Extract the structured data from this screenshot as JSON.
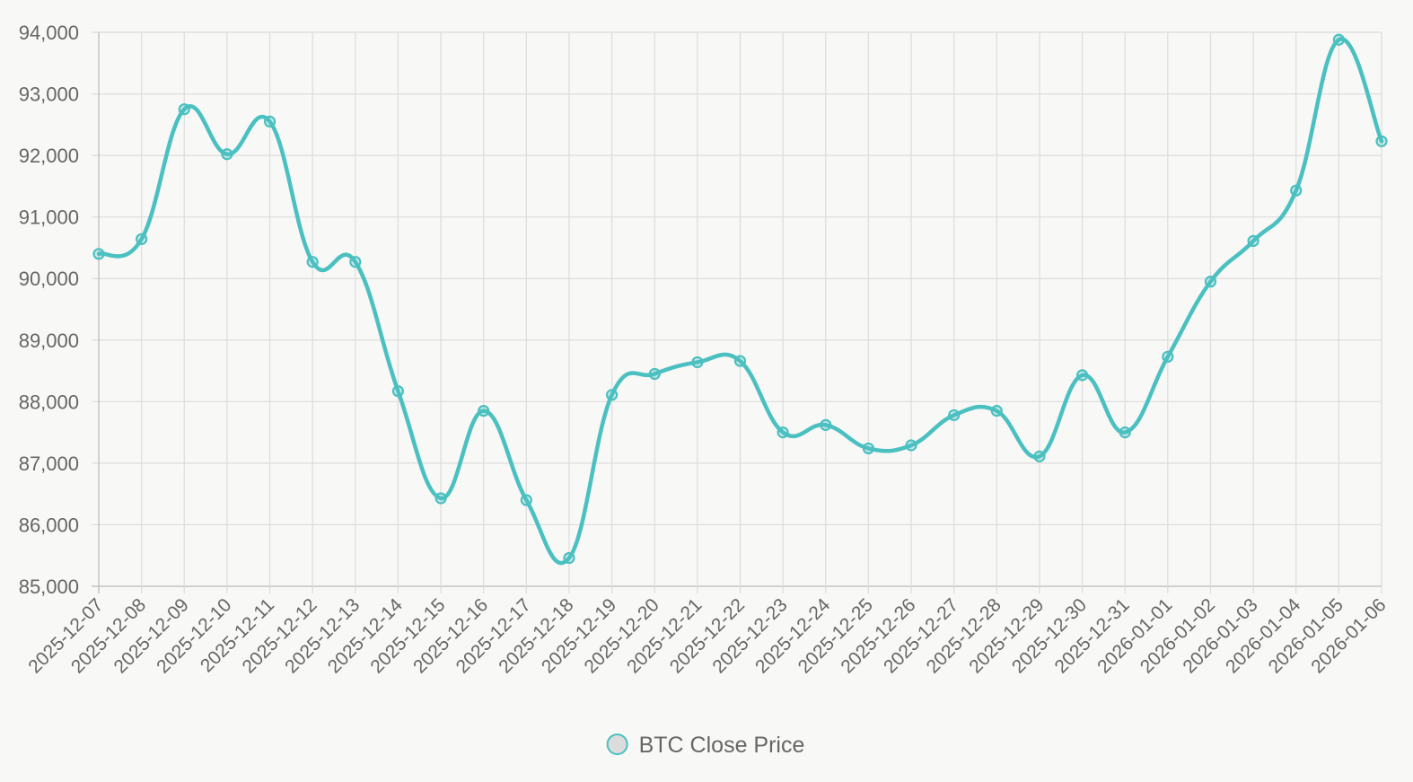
{
  "chart_data": {
    "type": "line",
    "x": [
      "2025-12-07",
      "2025-12-08",
      "2025-12-09",
      "2025-12-10",
      "2025-12-11",
      "2025-12-12",
      "2025-12-13",
      "2025-12-14",
      "2025-12-15",
      "2025-12-16",
      "2025-12-17",
      "2025-12-18",
      "2025-12-19",
      "2025-12-20",
      "2025-12-21",
      "2025-12-22",
      "2025-12-23",
      "2025-12-24",
      "2025-12-25",
      "2025-12-26",
      "2025-12-27",
      "2025-12-28",
      "2025-12-29",
      "2025-12-30",
      "2025-12-31",
      "2026-01-01",
      "2026-01-02",
      "2026-01-03",
      "2026-01-04",
      "2026-01-05",
      "2026-01-06"
    ],
    "series": [
      {
        "name": "BTC Close Price",
        "values": [
          90400,
          90640,
          92750,
          92020,
          92550,
          90270,
          90270,
          88170,
          86430,
          87850,
          86400,
          85460,
          88110,
          88450,
          88640,
          88660,
          87500,
          87620,
          87240,
          87290,
          87780,
          87850,
          87110,
          88430,
          87500,
          88730,
          89950,
          90610,
          91430,
          93880,
          92230
        ],
        "color": "#4bc0c0"
      }
    ],
    "yticks": [
      "85,000",
      "86,000",
      "87,000",
      "88,000",
      "89,000",
      "90,000",
      "91,000",
      "92,000",
      "93,000",
      "94,000"
    ],
    "ylim": [
      85000,
      94000
    ],
    "grid": true,
    "legend_position": "bottom"
  }
}
